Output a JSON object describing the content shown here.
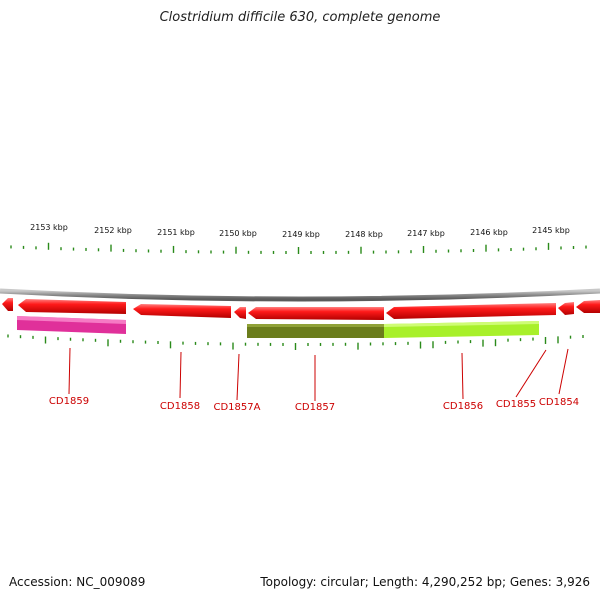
{
  "title": "Clostridium difficile 630, complete genome",
  "footer": {
    "accession": "Accession: NC_009089",
    "stats": "Topology: circular; Length: 4,290,252 bp; Genes: 3,926"
  },
  "scale_labels": [
    "2153 kbp",
    "2152 kbp",
    "2151 kbp",
    "2150 kbp",
    "2149 kbp",
    "2148 kbp",
    "2147 kbp",
    "2146 kbp",
    "2145 kbp"
  ],
  "genes": [
    "CD1859",
    "CD1858",
    "CD1857A",
    "CD1857",
    "CD1856",
    "CD1855",
    "CD1854"
  ],
  "colors": {
    "cds": "#ee1111",
    "backbone": "#8a8a8a",
    "tick": "#2a8a1a",
    "label": "#cc0000",
    "feature_magenta": "#e0309a",
    "feature_olive": "#6b7d1c",
    "feature_lime": "#a8f02a"
  }
}
